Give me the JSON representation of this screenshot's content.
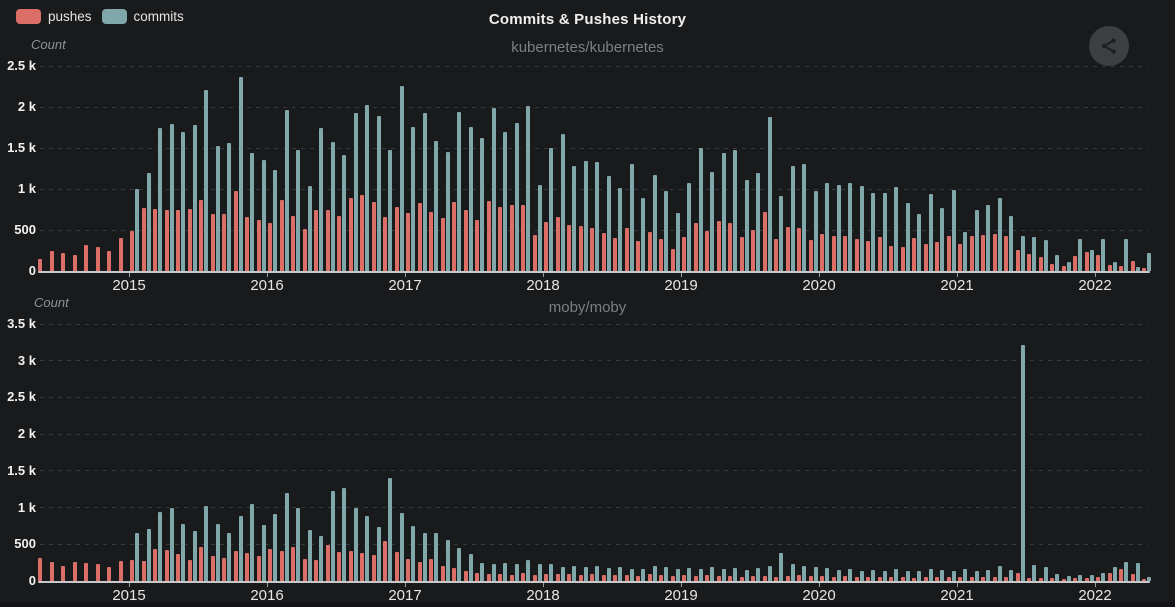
{
  "header": {
    "title": "Commits & Pushes History",
    "legend": [
      {
        "label": "pushes",
        "color": "#dc6e68"
      },
      {
        "label": "commits",
        "color": "#80a7aa"
      }
    ]
  },
  "icons": {
    "share": "share-icon"
  },
  "colors": {
    "background": "#191a1c",
    "pushes": "#dc6e68",
    "commits": "#80a7aa",
    "grid": "#37393d",
    "axis_line": "#c7c9cb",
    "subtitle_text": "#7d7f82"
  },
  "chart_data": [
    {
      "type": "bar",
      "title": "kubernetes/kubernetes",
      "ylabel": "Count",
      "ylim": [
        0,
        2500
      ],
      "ytick_step": 500,
      "ytick_labels": [
        "0",
        "500",
        "1 k",
        "1.5 k",
        "2 k",
        "2.5 k"
      ],
      "x_start": "2014-05",
      "x_step": "month",
      "x_year_ticks": [
        "2015",
        "2016",
        "2017",
        "2018",
        "2019",
        "2020",
        "2021",
        "2022"
      ],
      "grid": "dashed",
      "legend_position": "top-left",
      "series": [
        {
          "name": "pushes",
          "color": "#dc6e68",
          "values": [
            150,
            240,
            220,
            200,
            320,
            290,
            250,
            400,
            490,
            770,
            760,
            750,
            740,
            760,
            860,
            690,
            700,
            980,
            660,
            620,
            580,
            870,
            670,
            510,
            740,
            750,
            670,
            890,
            930,
            840,
            660,
            780,
            710,
            830,
            720,
            650,
            840,
            740,
            620,
            850,
            780,
            800,
            810,
            440,
            600,
            660,
            560,
            550,
            530,
            460,
            400,
            520,
            360,
            480,
            390,
            270,
            410,
            580,
            490,
            610,
            590,
            420,
            500,
            720,
            390,
            540,
            530,
            380,
            450,
            430,
            430,
            385,
            370,
            420,
            310,
            290,
            400,
            325,
            350,
            430,
            330,
            430,
            440,
            455,
            430,
            260,
            210,
            165,
            80,
            60,
            180,
            230,
            190,
            75,
            65,
            120,
            35
          ]
        },
        {
          "name": "commits",
          "color": "#80a7aa",
          "values": [
            0,
            0,
            0,
            0,
            0,
            0,
            0,
            0,
            1000,
            1200,
            1750,
            1790,
            1700,
            1780,
            2210,
            1530,
            1560,
            2360,
            1440,
            1350,
            1230,
            1960,
            1480,
            1040,
            1740,
            1570,
            1410,
            1930,
            2030,
            1890,
            1470,
            2260,
            1760,
            1930,
            1590,
            1450,
            1940,
            1760,
            1620,
            1990,
            1700,
            1800,
            2010,
            1050,
            1500,
            1670,
            1280,
            1340,
            1330,
            1160,
            1010,
            1310,
            890,
            1170,
            970,
            710,
            1070,
            1500,
            1210,
            1440,
            1470,
            1110,
            1200,
            1880,
            910,
            1280,
            1310,
            970,
            1070,
            1050,
            1070,
            1040,
            950,
            950,
            1020,
            830,
            690,
            940,
            770,
            990,
            480,
            750,
            800,
            890,
            670,
            430,
            410,
            380,
            190,
            110,
            390,
            260,
            390,
            110,
            390,
            45,
            215
          ]
        }
      ]
    },
    {
      "type": "bar",
      "title": "moby/moby",
      "ylabel": "Count",
      "ylim": [
        0,
        3500
      ],
      "ytick_step": 500,
      "ytick_labels": [
        "0",
        "500",
        "1 k",
        "1.5 k",
        "2 k",
        "2.5 k",
        "3 k",
        "3.5 k"
      ],
      "x_start": "2014-05",
      "x_step": "month",
      "x_year_ticks": [
        "2015",
        "2016",
        "2017",
        "2018",
        "2019",
        "2020",
        "2021",
        "2022"
      ],
      "grid": "dashed",
      "series": [
        {
          "name": "pushes",
          "color": "#dc6e68",
          "values": [
            315,
            260,
            200,
            260,
            245,
            230,
            190,
            270,
            280,
            270,
            430,
            420,
            365,
            280,
            465,
            340,
            315,
            410,
            385,
            340,
            430,
            410,
            465,
            305,
            280,
            495,
            395,
            405,
            375,
            350,
            545,
            395,
            300,
            265,
            300,
            205,
            175,
            130,
            115,
            100,
            90,
            85,
            115,
            85,
            100,
            90,
            95,
            85,
            90,
            80,
            85,
            75,
            70,
            90,
            80,
            70,
            75,
            70,
            75,
            65,
            70,
            60,
            70,
            65,
            60,
            70,
            75,
            65,
            70,
            60,
            65,
            55,
            60,
            50,
            55,
            50,
            45,
            55,
            60,
            50,
            55,
            50,
            55,
            60,
            50,
            115,
            45,
            40,
            35,
            30,
            40,
            45,
            60,
            110,
            160,
            90,
            30
          ]
        },
        {
          "name": "commits",
          "color": "#80a7aa",
          "values": [
            0,
            0,
            0,
            0,
            0,
            0,
            0,
            0,
            660,
            705,
            940,
            1000,
            770,
            680,
            1020,
            775,
            660,
            880,
            1050,
            760,
            910,
            1200,
            1000,
            690,
            615,
            1220,
            1270,
            995,
            885,
            730,
            1400,
            925,
            750,
            655,
            660,
            555,
            450,
            370,
            250,
            235,
            250,
            230,
            290,
            230,
            230,
            195,
            210,
            190,
            205,
            180,
            190,
            170,
            160,
            200,
            185,
            160,
            180,
            165,
            185,
            160,
            175,
            150,
            180,
            200,
            380,
            230,
            200,
            190,
            175,
            150,
            160,
            140,
            150,
            130,
            170,
            140,
            130,
            160,
            150,
            140,
            160,
            140,
            150,
            210,
            150,
            3220,
            215,
            185,
            90,
            70,
            80,
            75,
            115,
            185,
            255,
            240,
            60
          ]
        }
      ]
    }
  ]
}
